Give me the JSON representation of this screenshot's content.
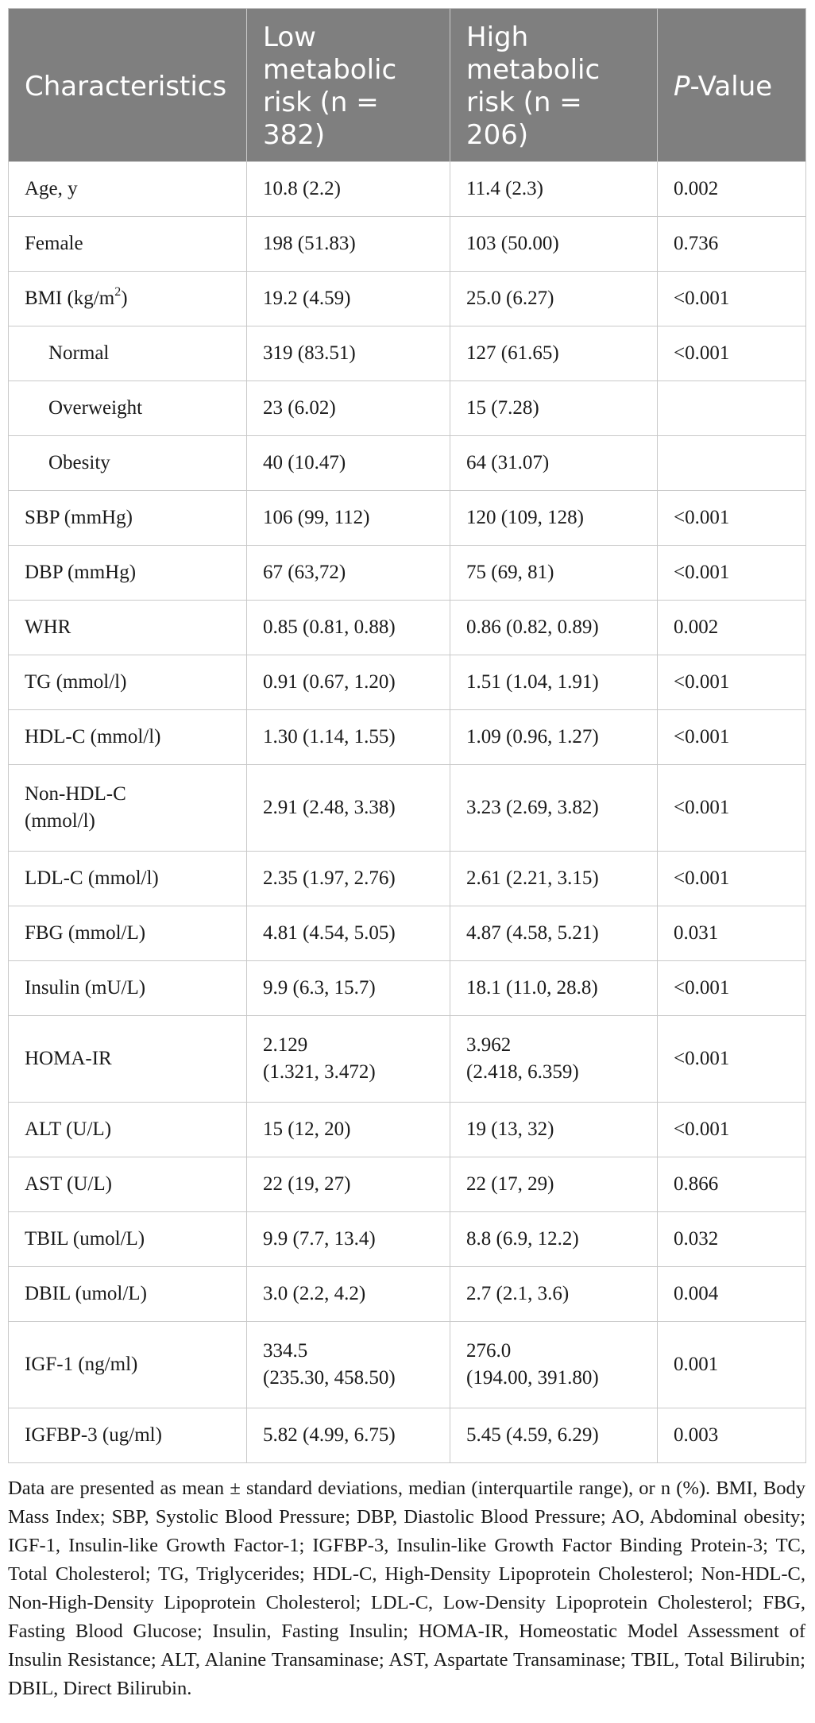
{
  "table": {
    "headers": {
      "characteristics": "Characteristics",
      "low": [
        "Low",
        "metabolic",
        "risk (n = 382)"
      ],
      "high": [
        "High",
        "metabolic",
        "risk (n = 206)"
      ],
      "p_italic": "P",
      "p_rest": "-Value"
    },
    "rows": [
      {
        "label": "Age, y",
        "low": "10.8 (2.2)",
        "high": "11.4 (2.3)",
        "p": "0.002"
      },
      {
        "label": "Female",
        "low": "198 (51.83)",
        "high": "103 (50.00)",
        "p": "0.736"
      },
      {
        "label": "BMI (kg/m",
        "label_sup": "2",
        "label_end": ")",
        "low": "19.2 (4.59)",
        "high": "25.0 (6.27)",
        "p": "<0.001"
      },
      {
        "label": "Normal",
        "low": "319 (83.51)",
        "high": "127 (61.65)",
        "p": "<0.001"
      },
      {
        "label": "Overweight",
        "low": "23 (6.02)",
        "high": "15 (7.28)",
        "p": ""
      },
      {
        "label": "Obesity",
        "low": "40 (10.47)",
        "high": "64 (31.07)",
        "p": ""
      },
      {
        "label": "SBP (mmHg)",
        "low": "106 (99, 112)",
        "high": "120 (109, 128)",
        "p": "<0.001"
      },
      {
        "label": "DBP (mmHg)",
        "low": "67 (63,72)",
        "high": "75 (69, 81)",
        "p": "<0.001"
      },
      {
        "label": "WHR",
        "low": "0.85 (0.81, 0.88)",
        "high": "0.86 (0.82, 0.89)",
        "p": "0.002"
      },
      {
        "label": "TG (mmol/l)",
        "low": "0.91 (0.67, 1.20)",
        "high": "1.51 (1.04, 1.91)",
        "p": "<0.001"
      },
      {
        "label": "HDL-C (mmol/l)",
        "low": "1.30 (1.14, 1.55)",
        "high": "1.09 (0.96, 1.27)",
        "p": "<0.001"
      },
      {
        "label": "Non-HDL-C",
        "label2": "(mmol/l)",
        "low": "2.91 (2.48, 3.38)",
        "high": "3.23 (2.69, 3.82)",
        "p": "<0.001"
      },
      {
        "label": "LDL-C (mmol/l)",
        "low": "2.35 (1.97, 2.76)",
        "high": "2.61 (2.21, 3.15)",
        "p": "<0.001"
      },
      {
        "label": "FBG (mmol/L)",
        "low": "4.81 (4.54, 5.05)",
        "high": "4.87 (4.58, 5.21)",
        "p": "0.031"
      },
      {
        "label": "Insulin (mU/L)",
        "low": "9.9 (6.3, 15.7)",
        "high": "18.1 (11.0, 28.8)",
        "p": "<0.001"
      },
      {
        "label": "HOMA-IR",
        "low": "2.129",
        "low2": "(1.321, 3.472)",
        "high": "3.962",
        "high2": "(2.418, 6.359)",
        "p": "<0.001"
      },
      {
        "label": "ALT (U/L)",
        "low": "15 (12, 20)",
        "high": "19 (13, 32)",
        "p": "<0.001"
      },
      {
        "label": "AST (U/L)",
        "low": "22 (19, 27)",
        "high": "22 (17, 29)",
        "p": "0.866"
      },
      {
        "label": "TBIL (umol/L)",
        "low": "9.9 (7.7, 13.4)",
        "high": "8.8 (6.9, 12.2)",
        "p": "0.032"
      },
      {
        "label": "DBIL (umol/L)",
        "low": "3.0 (2.2, 4.2)",
        "high": "2.7 (2.1, 3.6)",
        "p": "0.004"
      },
      {
        "label": "IGF-1 (ng/ml)",
        "low": "334.5",
        "low2": "(235.30, 458.50)",
        "high": "276.0",
        "high2": "(194.00, 391.80)",
        "p": "0.001"
      },
      {
        "label": "IGFBP-3 (ug/ml)",
        "low": "5.82 (4.99, 6.75)",
        "high": "5.45 (4.59, 6.29)",
        "p": "0.003"
      }
    ]
  },
  "footnote": "Data are presented as mean ± standard deviations, median (interquartile range), or n (%). BMI, Body Mass Index; SBP, Systolic Blood Pressure; DBP, Diastolic Blood Pressure; AO, Abdominal obesity; IGF-1, Insulin-like Growth Factor-1; IGFBP-3, Insulin-like Growth Factor Binding Protein-3; TC, Total Cholesterol; TG, Triglycerides; HDL-C, High-Density Lipoprotein Cholesterol; Non-HDL-C, Non-High-Density Lipoprotein Cholesterol; LDL-C, Low-Density Lipoprotein Cholesterol; FBG, Fasting Blood Glucose; Insulin, Fasting Insulin; HOMA-IR, Homeostatic Model Assessment of Insulin Resistance; ALT, Alanine Transaminase; AST, Aspartate Transaminase; TBIL, Total Bilirubin; DBIL, Direct Bilirubin."
}
